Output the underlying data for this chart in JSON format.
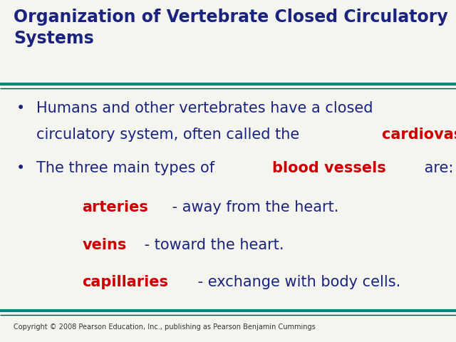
{
  "title_line1": "Organization of Vertebrate Closed Circulatory",
  "title_line2": "Systems",
  "title_color": "#1a237e",
  "title_fontsize": 17,
  "separator_color": "#00897b",
  "separator_color2": "#004d40",
  "bg_color": "#f5f5f0",
  "bullet_color": "#1a237e",
  "body_color": "#1a237e",
  "red_color": "#cc0000",
  "body_fontsize": 15,
  "sub_fontsize": 15,
  "copyright_text": "Copyright © 2008 Pearson Education, Inc., publishing as Pearson Benjamin Cummings",
  "copyright_fontsize": 7,
  "copyright_color": "#333333"
}
